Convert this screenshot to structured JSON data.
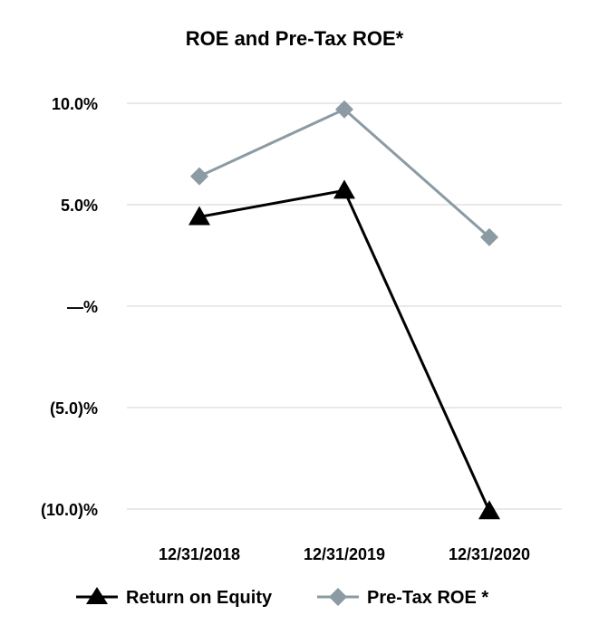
{
  "chart_data": {
    "type": "line",
    "title": "ROE and Pre-Tax ROE*",
    "categories": [
      "12/31/2018",
      "12/31/2019",
      "12/31/2020"
    ],
    "y_ticks": [
      {
        "value": 10,
        "label": "10.0%"
      },
      {
        "value": 5,
        "label": "5.0%"
      },
      {
        "value": 0,
        "label": "—%"
      },
      {
        "value": -5,
        "label": "(5.0)%"
      },
      {
        "value": -10,
        "label": "(10.0)%"
      }
    ],
    "ylim": [
      -10,
      10
    ],
    "grid": true,
    "legend_position": "bottom",
    "series": [
      {
        "name": "Return on Equity",
        "values": [
          4.4,
          5.7,
          -10.1
        ],
        "color": "#000000",
        "marker": "triangle"
      },
      {
        "name": "Pre-Tax ROE *",
        "values": [
          6.4,
          9.7,
          3.4
        ],
        "color": "#8c9aa3",
        "marker": "diamond"
      }
    ]
  }
}
